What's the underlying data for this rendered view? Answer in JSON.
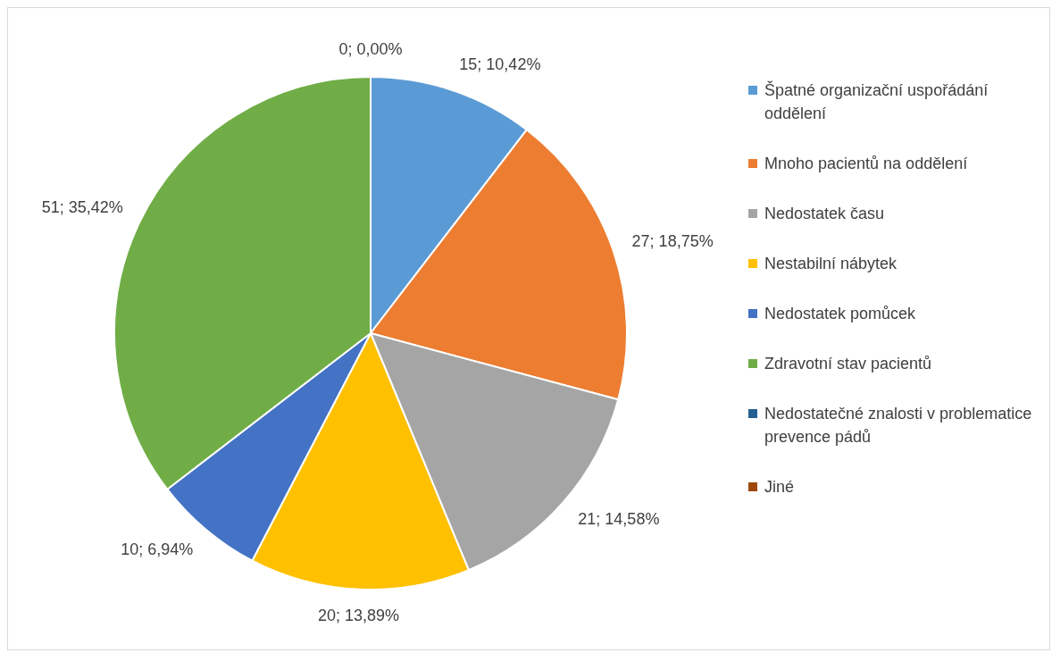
{
  "chart_data": {
    "type": "pie",
    "categories": [
      "Špatné organizační uspořádání oddělení",
      "Mnoho pacientů na oddělení",
      "Nedostatek času",
      "Nestabilní nábytek",
      "Nedostatek pomůcek",
      "Zdravotní stav pacientů",
      "Nedostatečné znalosti v problematice prevence pádů",
      "Jiné"
    ],
    "values": [
      15,
      27,
      21,
      20,
      10,
      51,
      0,
      0
    ],
    "colors": [
      "#5b9bd5",
      "#ed7d31",
      "#a5a5a5",
      "#ffc000",
      "#4472c4",
      "#70ad47",
      "#255e91",
      "#9e480e"
    ],
    "value_labels": [
      "15; 10,42%",
      "27; 18,75%",
      "21; 14,58%",
      "20; 13,89%",
      "10; 6,94%",
      "51; 35,42%",
      "0; 0,00%",
      null
    ],
    "legend": "right"
  }
}
